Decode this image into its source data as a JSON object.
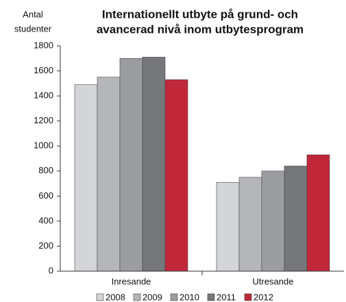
{
  "chart_data": {
    "type": "bar",
    "title": [
      "Internationellt utbyte på grund- och",
      "avancerad nivå inom utbytesprogram"
    ],
    "y_label": [
      "Antal",
      "studenter"
    ],
    "categories": [
      "Inresande",
      "Utresande"
    ],
    "series": [
      {
        "name": "2008",
        "color": "#d4d5d8",
        "values": [
          1490,
          710
        ]
      },
      {
        "name": "2009",
        "color": "#b5b6ba",
        "values": [
          1550,
          750
        ]
      },
      {
        "name": "2010",
        "color": "#9c9da1",
        "values": [
          1700,
          800
        ]
      },
      {
        "name": "2011",
        "color": "#76777b",
        "values": [
          1710,
          840
        ]
      },
      {
        "name": "2012",
        "color": "#c0283a",
        "values": [
          1530,
          930
        ]
      }
    ],
    "ylim": [
      0,
      1800
    ],
    "yticks": [
      0,
      200,
      400,
      600,
      800,
      1000,
      1200,
      1400,
      1600,
      1800
    ],
    "grid": false,
    "legend": "bottom"
  }
}
